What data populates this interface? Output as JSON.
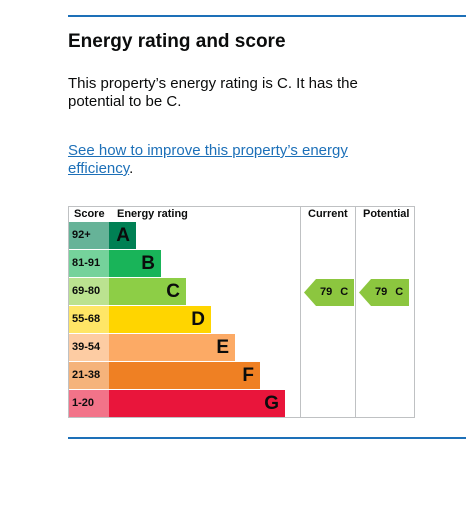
{
  "heading": "Energy rating and score",
  "summary": "This property’s energy rating is C. It has the potential to be C.",
  "improve_link": "See how to improve this property’s energy efficiency",
  "improve_link_suffix": ".",
  "table": {
    "headers": {
      "score": "Score",
      "rating": "Energy rating",
      "current": "Current",
      "potential": "Potential"
    },
    "bands": [
      {
        "range": "92+",
        "letter": "A",
        "color": "#008054",
        "range_bg": "#66b398",
        "bar_fraction": 0.151
      },
      {
        "range": "81-91",
        "letter": "B",
        "color": "#19b459",
        "range_bg": "#75d29b",
        "bar_fraction": 0.289
      },
      {
        "range": "69-80",
        "letter": "C",
        "color": "#8dce46",
        "range_bg": "#bbe290",
        "bar_fraction": 0.426
      },
      {
        "range": "55-68",
        "letter": "D",
        "color": "#ffd500",
        "range_bg": "#ffe666",
        "bar_fraction": 0.564
      },
      {
        "range": "39-54",
        "letter": "E",
        "color": "#fcaa65",
        "range_bg": "#fdcca3",
        "bar_fraction": 0.702
      },
      {
        "range": "21-38",
        "letter": "F",
        "color": "#ef8023",
        "range_bg": "#f5b37b",
        "bar_fraction": 0.839
      },
      {
        "range": "1-20",
        "letter": "G",
        "color": "#e9153b",
        "range_bg": "#f27389",
        "bar_fraction": 0.977
      }
    ],
    "current": {
      "score": "79",
      "letter": "C"
    },
    "potential": {
      "score": "79",
      "letter": "C"
    }
  }
}
